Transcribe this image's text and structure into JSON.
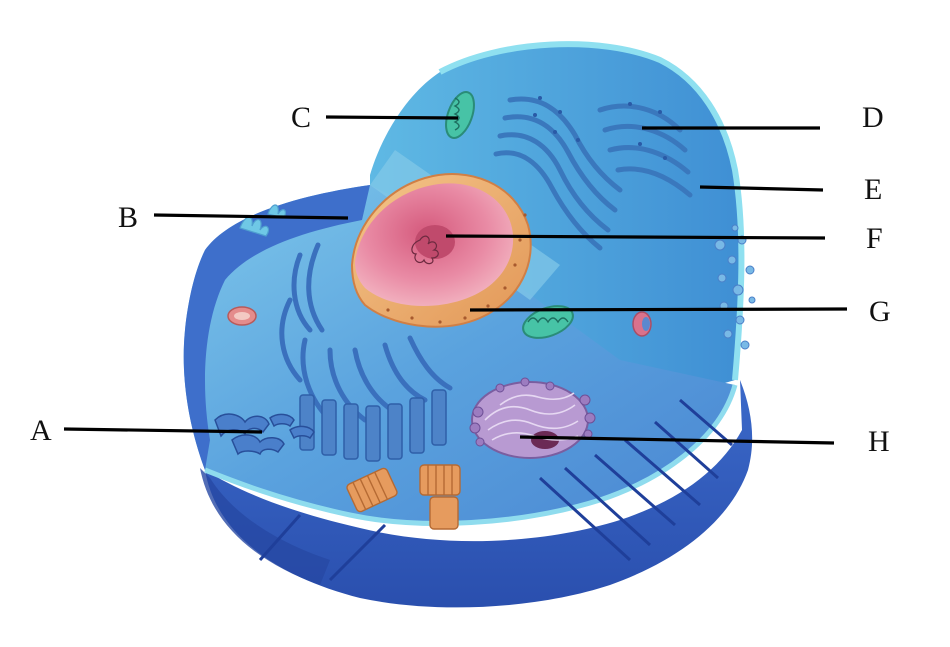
{
  "labels": {
    "A": "A",
    "B": "B",
    "C": "C",
    "D": "D",
    "E": "E",
    "F": "F",
    "G": "G",
    "H": "H"
  },
  "colors": {
    "cytoplasm": "#5a8fd6",
    "cell_rim": "#7fd0e6",
    "cell_side": "#2f56b8",
    "nucleus": "#e48aa0",
    "nuclear_envelope": "#f2b071",
    "golgi": "#b59ad6",
    "er": "#3f7fc2",
    "mitochondria": "#3fb49c"
  }
}
